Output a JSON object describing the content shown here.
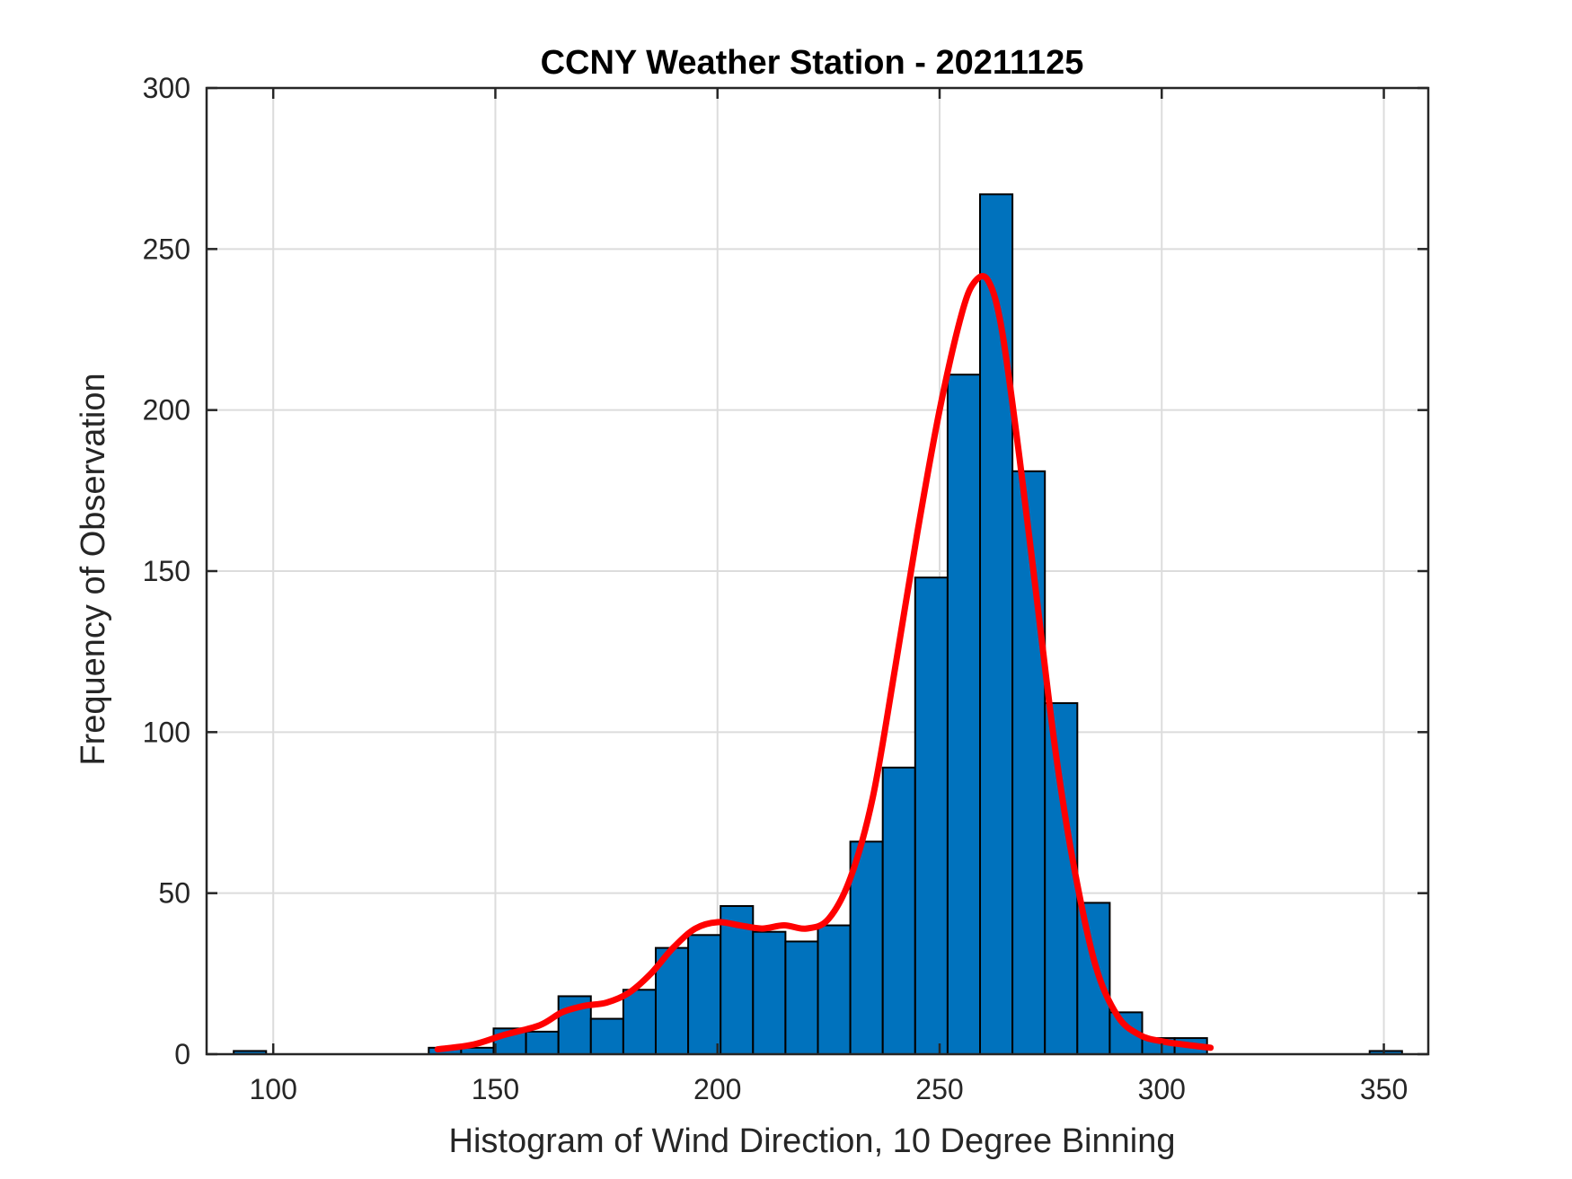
{
  "chart_data": {
    "type": "bar",
    "title": "CCNY Weather Station - 20211125",
    "xlabel": "Histogram of Wind Direction, 10 Degree Binning",
    "ylabel": "Frequency of Observation",
    "xlim": [
      85,
      360
    ],
    "ylim": [
      0,
      300
    ],
    "xticks": [
      100,
      150,
      200,
      250,
      300,
      350
    ],
    "yticks": [
      0,
      50,
      100,
      150,
      200,
      250,
      300
    ],
    "grid": true,
    "bar_color": "#0072BD",
    "bar_edge_color": "#000000",
    "curve_color": "#FF0000",
    "bins": [
      {
        "left": 91.1,
        "right": 98.4,
        "value": 1
      },
      {
        "left": 135.0,
        "right": 142.3,
        "value": 2
      },
      {
        "left": 142.3,
        "right": 149.6,
        "value": 2
      },
      {
        "left": 149.6,
        "right": 156.9,
        "value": 8
      },
      {
        "left": 156.9,
        "right": 164.2,
        "value": 7
      },
      {
        "left": 164.2,
        "right": 171.5,
        "value": 18
      },
      {
        "left": 171.5,
        "right": 178.8,
        "value": 11
      },
      {
        "left": 178.8,
        "right": 186.1,
        "value": 20
      },
      {
        "left": 186.1,
        "right": 193.4,
        "value": 33
      },
      {
        "left": 193.4,
        "right": 200.7,
        "value": 37
      },
      {
        "left": 200.7,
        "right": 208.0,
        "value": 46
      },
      {
        "left": 208.0,
        "right": 215.3,
        "value": 38
      },
      {
        "left": 215.3,
        "right": 222.6,
        "value": 35
      },
      {
        "left": 222.6,
        "right": 229.9,
        "value": 40
      },
      {
        "left": 229.9,
        "right": 237.2,
        "value": 66
      },
      {
        "left": 237.2,
        "right": 244.5,
        "value": 89
      },
      {
        "left": 244.5,
        "right": 251.8,
        "value": 148
      },
      {
        "left": 251.8,
        "right": 259.1,
        "value": 211
      },
      {
        "left": 259.1,
        "right": 266.4,
        "value": 267
      },
      {
        "left": 266.4,
        "right": 273.7,
        "value": 181
      },
      {
        "left": 273.7,
        "right": 281.0,
        "value": 109
      },
      {
        "left": 281.0,
        "right": 288.3,
        "value": 47
      },
      {
        "left": 288.3,
        "right": 295.6,
        "value": 13
      },
      {
        "left": 295.6,
        "right": 302.9,
        "value": 5
      },
      {
        "left": 302.9,
        "right": 310.2,
        "value": 5
      },
      {
        "left": 346.8,
        "right": 354.1,
        "value": 1
      }
    ],
    "curve": {
      "x": [
        137,
        145,
        152,
        160,
        165,
        170,
        175,
        180,
        185,
        190,
        195,
        200,
        205,
        210,
        215,
        220,
        225,
        230,
        235,
        240,
        245,
        250,
        255,
        258,
        261,
        264,
        268,
        272,
        276,
        280,
        285,
        290,
        295,
        300,
        305,
        311
      ],
      "y": [
        1.5,
        3,
        6,
        9,
        13,
        15,
        16,
        19,
        25,
        33,
        39,
        41,
        40,
        39,
        40,
        39,
        42,
        55,
        80,
        120,
        162,
        200,
        230,
        240,
        240,
        225,
        185,
        140,
        95,
        60,
        28,
        12,
        6,
        4,
        3,
        2
      ]
    }
  }
}
